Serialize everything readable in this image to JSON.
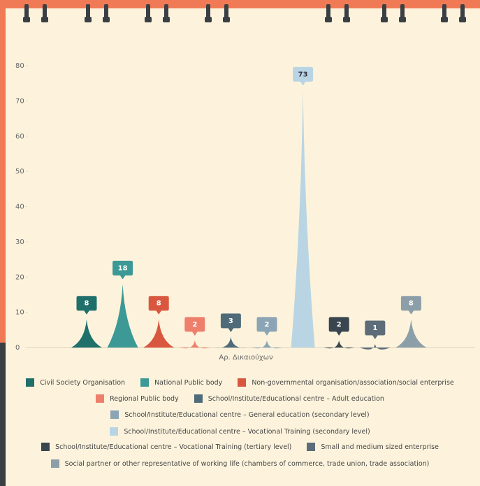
{
  "chart_data": {
    "type": "spike",
    "categories": [
      "Αρ. Δικαιούχων"
    ],
    "series": [
      {
        "name": "Civil Society Organisation",
        "color": "#1f6f6b",
        "values": [
          8
        ]
      },
      {
        "name": "National Public body",
        "color": "#3c9995",
        "values": [
          18
        ]
      },
      {
        "name": "Non-governmental organisation/association/social enterprise",
        "color": "#d9573f",
        "values": [
          8
        ]
      },
      {
        "name": "Regional Public body",
        "color": "#ef7f6d",
        "values": [
          2
        ]
      },
      {
        "name": "School/Institute/Educational centre – Adult education",
        "color": "#4f6b79",
        "values": [
          3
        ]
      },
      {
        "name": "School/Institute/Educational centre – General education (secondary level)",
        "color": "#8ba5b5",
        "values": [
          2
        ]
      },
      {
        "name": "School/Institute/Educational centre – Vocational Training (secondary level)",
        "color": "#b9d5e3",
        "values": [
          73
        ]
      },
      {
        "name": "School/Institute/Educational centre – Vocational Training (tertiary level)",
        "color": "#394650",
        "values": [
          2
        ]
      },
      {
        "name": "Small and medium sized enterprise",
        "color": "#5c6c79",
        "values": [
          1
        ]
      },
      {
        "name": "Social partner or other representative of working life (chambers of commerce, trade union, trade association)",
        "color": "#8c9fa9",
        "values": [
          8
        ]
      }
    ],
    "ylim": [
      0,
      80
    ],
    "yticks": [
      0,
      10,
      20,
      30,
      40,
      50,
      60,
      70,
      80
    ],
    "grid": false
  }
}
